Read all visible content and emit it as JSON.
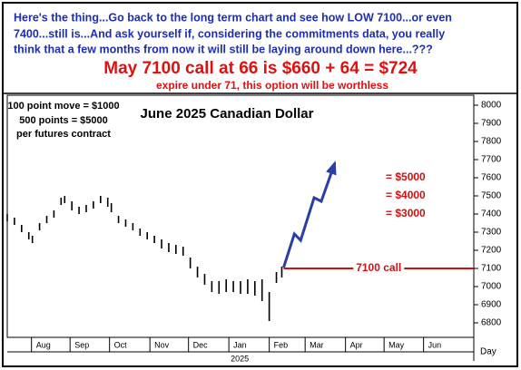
{
  "header": {
    "lines": [
      "Here's the thing...Go back to the long term chart and see how LOW 7100...or even",
      "7400...still is...And ask yourself if, considering the commitments data, you really",
      "think that a few months from now it will still be laying around down here...???"
    ],
    "headline": "May 7100 call at 66 is $660 + 64 = $724",
    "subline": "expire under 71, this option will be worthless"
  },
  "chart_data": {
    "type": "range",
    "title": "June 2025 Canadian Dollar",
    "notes": [
      "100 point move = $1000",
      "500 points = $5000",
      "per futures contract"
    ],
    "x": [
      0,
      4,
      8,
      12,
      14,
      18,
      22,
      26,
      30,
      32,
      36,
      40,
      44,
      48,
      52,
      56,
      58,
      62,
      66,
      70,
      74,
      78,
      82,
      86,
      90,
      94,
      98,
      102,
      106,
      110,
      114,
      118,
      122,
      126,
      130,
      134,
      138,
      142,
      146,
      150,
      153
    ],
    "high": [
      7400,
      7380,
      7340,
      7300,
      7280,
      7350,
      7390,
      7420,
      7490,
      7500,
      7470,
      7440,
      7450,
      7470,
      7500,
      7490,
      7460,
      7390,
      7370,
      7350,
      7320,
      7300,
      7280,
      7260,
      7240,
      7230,
      7220,
      7160,
      7110,
      7070,
      7030,
      7030,
      7040,
      7030,
      7030,
      7040,
      7030,
      7040,
      6970,
      7080,
      7110
    ],
    "low": [
      7360,
      7340,
      7300,
      7260,
      7240,
      7310,
      7350,
      7380,
      7450,
      7460,
      7420,
      7400,
      7410,
      7430,
      7460,
      7440,
      7410,
      7350,
      7330,
      7310,
      7280,
      7260,
      7240,
      7210,
      7190,
      7180,
      7170,
      7100,
      7050,
      7010,
      6970,
      6960,
      6970,
      6970,
      6960,
      6960,
      6950,
      6920,
      6810,
      7020,
      7050
    ],
    "color": "#000000",
    "xlim": [
      0,
      260
    ],
    "xticks": [
      {
        "value": 13.5,
        "label": "Aug"
      },
      {
        "value": 35,
        "label": "Sep"
      },
      {
        "value": 57,
        "label": "Oct"
      },
      {
        "value": 79.5,
        "label": "Nov"
      },
      {
        "value": 101,
        "label": "Dec"
      },
      {
        "value": 123.5,
        "label": "Jan"
      },
      {
        "value": 146,
        "label": "Feb"
      },
      {
        "value": 166,
        "label": "Mar"
      },
      {
        "value": 188.5,
        "label": "Apr"
      },
      {
        "value": 210,
        "label": "May"
      },
      {
        "value": 232,
        "label": "Jun"
      }
    ],
    "year": "2025",
    "x_axis_label": "Day",
    "ylim": [
      6720,
      8055
    ],
    "yticks": [
      6800,
      6900,
      7000,
      7100,
      7200,
      7300,
      7400,
      7500,
      7600,
      7700,
      7800,
      7900,
      8000
    ],
    "projection": {
      "x": [
        154,
        160,
        163.5,
        171,
        175,
        182.5
      ],
      "values": [
        7105,
        7290,
        7255,
        7490,
        7470,
        7680
      ],
      "color": "#2a3fa6"
    },
    "call_line": {
      "x_start": 154,
      "value": 7100,
      "label": "7100 call",
      "color": "#d01010"
    },
    "levels": [
      {
        "value": 7600,
        "label": "= $5000"
      },
      {
        "value": 7500,
        "label": "= $4000"
      },
      {
        "value": 7400,
        "label": "= $3000"
      }
    ]
  }
}
